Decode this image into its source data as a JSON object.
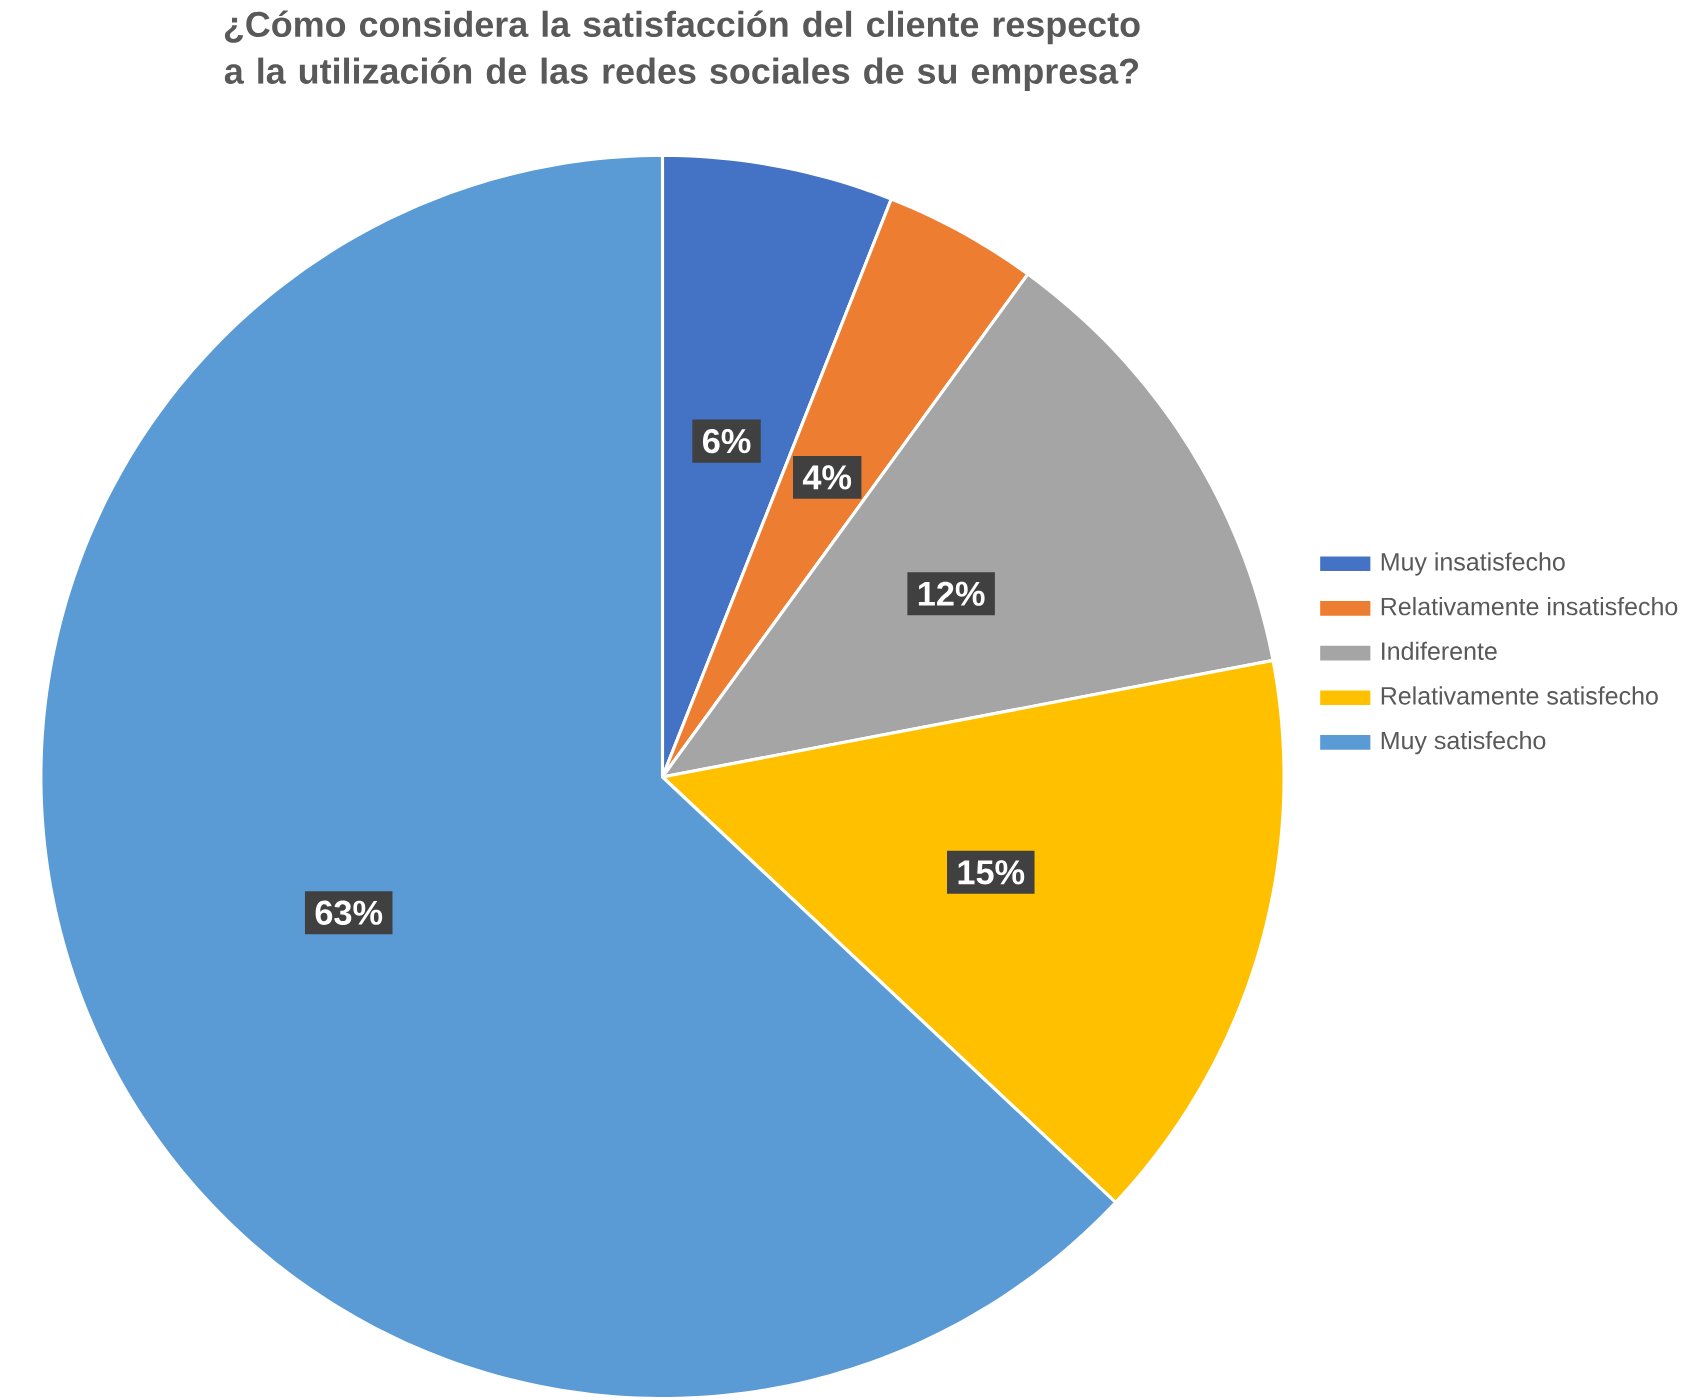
{
  "chart_data": {
    "type": "pie",
    "title": "¿Cómo considera la satisfacción del cliente respecto a la utilización de las redes sociales de su empresa?",
    "categories": [
      "Muy insatisfecho",
      "Relativamente insatisfecho",
      "Indiferente",
      "Relativamente satisfecho",
      "Muy satisfecho"
    ],
    "values": [
      6,
      4,
      12,
      15,
      63
    ],
    "colors": [
      "#4472c4",
      "#ed7d31",
      "#a5a5a5",
      "#ffc000",
      "#5b9bd5"
    ],
    "value_labels": [
      "6%",
      "4%",
      "12%",
      "15%",
      "63%"
    ],
    "legend": "right"
  }
}
